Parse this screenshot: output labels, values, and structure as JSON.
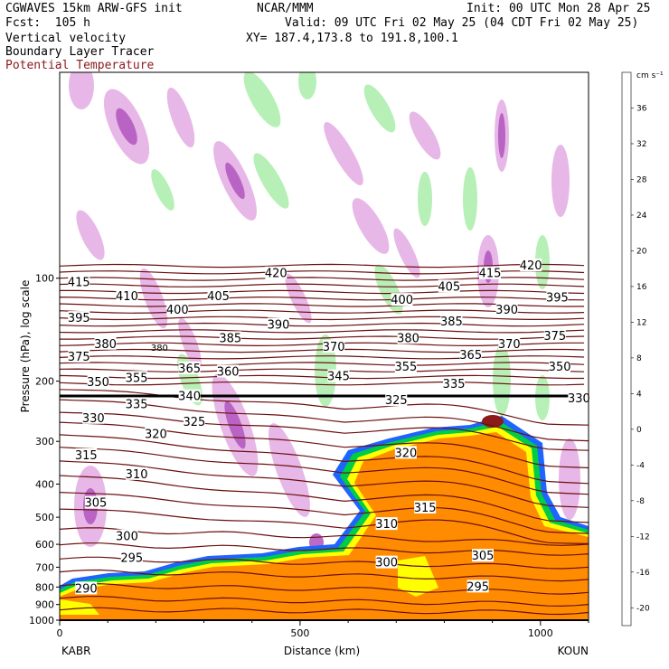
{
  "header": {
    "title_left": "CGWAVES 15km ARW-GFS init",
    "center_org": "NCAR/MMM",
    "init": "Init: 00 UTC Mon 28 Apr 25",
    "fcst": "Fcst:  105 h",
    "valid": "Valid: 09 UTC Fri 02 May 25 (04 CDT Fri 02 May 25)",
    "field1": "Vertical velocity",
    "field2": "Boundary Layer Tracer",
    "field3": "Potential Temperature",
    "xy": "XY= 187.4,173.8 to 191.8,100.1"
  },
  "colors": {
    "theta_line": "#6b0f0f",
    "tracer_fill": "#ff8c00",
    "tracer_edge_yellow": "#ffff00",
    "tracer_edge_green": "#00cc44",
    "tracer_edge_blue": "#1e64ff",
    "updraft_light": "#b4f0b4",
    "downdraft_light": "#e6b4e6",
    "downdraft_dark": "#8c3ca0"
  },
  "chart_data": {
    "type": "cross-section",
    "xlabel": "Distance (km)",
    "ylabel": "Pressure (hPa), log scale",
    "left_endpoint": "KABR",
    "right_endpoint": "KOUN",
    "x_ticks": [
      {
        "value": 0,
        "label": "0"
      },
      {
        "value": 500,
        "label": "500"
      },
      {
        "value": 1000,
        "label": "1000"
      }
    ],
    "xlim": [
      0,
      1100
    ],
    "y_ticks": [
      {
        "value": 100,
        "label": "100"
      },
      {
        "value": 200,
        "label": "200"
      },
      {
        "value": 300,
        "label": "300"
      },
      {
        "value": 400,
        "label": "400"
      },
      {
        "value": 500,
        "label": "500"
      },
      {
        "value": 600,
        "label": "600"
      },
      {
        "value": 700,
        "label": "700"
      },
      {
        "value": 800,
        "label": "800"
      },
      {
        "value": 900,
        "label": "900"
      },
      {
        "value": 1000,
        "label": "1000"
      }
    ],
    "ylim": [
      1000,
      25
    ],
    "colorbar": {
      "unit": "cm s⁻¹",
      "levels": [
        -22,
        -20,
        -18,
        -16,
        -14,
        -12,
        -10,
        -8,
        -6,
        -4,
        -2,
        0,
        2,
        4,
        6,
        8,
        10,
        12,
        14,
        16,
        18,
        20,
        22,
        24,
        26,
        28,
        30,
        32,
        34,
        36,
        38,
        40
      ],
      "labels": [
        "-20",
        "-16",
        "-12",
        "-8",
        "-4",
        "0",
        "4",
        "8",
        "12",
        "16",
        "20",
        "24",
        "28",
        "32",
        "36"
      ],
      "label_values": [
        -20,
        -16,
        -12,
        -8,
        -4,
        0,
        4,
        8,
        12,
        16,
        20,
        24,
        28,
        32,
        36
      ]
    },
    "theta_labels": [
      {
        "text": "415",
        "x": 40,
        "p": 103
      },
      {
        "text": "410",
        "x": 140,
        "p": 113
      },
      {
        "text": "400",
        "x": 245,
        "p": 124
      },
      {
        "text": "405",
        "x": 330,
        "p": 113
      },
      {
        "text": "420",
        "x": 450,
        "p": 97
      },
      {
        "text": "400",
        "x": 712,
        "p": 116
      },
      {
        "text": "405",
        "x": 810,
        "p": 106
      },
      {
        "text": "415",
        "x": 895,
        "p": 97
      },
      {
        "text": "420",
        "x": 980,
        "p": 92
      },
      {
        "text": "395",
        "x": 1035,
        "p": 114
      },
      {
        "text": "395",
        "x": 40,
        "p": 131
      },
      {
        "text": "390",
        "x": 455,
        "p": 137
      },
      {
        "text": "385",
        "x": 815,
        "p": 134
      },
      {
        "text": "390",
        "x": 930,
        "p": 124
      },
      {
        "text": "380",
        "x": 95,
        "p": 156
      },
      {
        "text": "385",
        "x": 355,
        "p": 150
      },
      {
        "text": "370",
        "x": 570,
        "p": 159
      },
      {
        "text": "380",
        "x": 725,
        "p": 150
      },
      {
        "text": "370",
        "x": 935,
        "p": 156
      },
      {
        "text": "375",
        "x": 1030,
        "p": 148
      },
      {
        "text": "375",
        "x": 40,
        "p": 170
      },
      {
        "text": "365",
        "x": 270,
        "p": 184
      },
      {
        "text": "360",
        "x": 350,
        "p": 188
      },
      {
        "text": "355",
        "x": 160,
        "p": 196
      },
      {
        "text": "345",
        "x": 580,
        "p": 194
      },
      {
        "text": "355",
        "x": 720,
        "p": 182
      },
      {
        "text": "365",
        "x": 855,
        "p": 168
      },
      {
        "text": "350",
        "x": 1040,
        "p": 182
      },
      {
        "text": "350",
        "x": 80,
        "p": 202
      },
      {
        "text": "340",
        "x": 270,
        "p": 222
      },
      {
        "text": "335",
        "x": 160,
        "p": 234
      },
      {
        "text": "335",
        "x": 820,
        "p": 204
      },
      {
        "text": "325",
        "x": 700,
        "p": 228
      },
      {
        "text": "330",
        "x": 1080,
        "p": 225
      },
      {
        "text": "330",
        "x": 70,
        "p": 257
      },
      {
        "text": "325",
        "x": 280,
        "p": 264
      },
      {
        "text": "320",
        "x": 200,
        "p": 286
      },
      {
        "text": "320",
        "x": 720,
        "p": 325
      },
      {
        "text": "315",
        "x": 55,
        "p": 330
      },
      {
        "text": "310",
        "x": 160,
        "p": 375
      },
      {
        "text": "305",
        "x": 75,
        "p": 455
      },
      {
        "text": "315",
        "x": 760,
        "p": 470
      },
      {
        "text": "310",
        "x": 680,
        "p": 525
      },
      {
        "text": "300",
        "x": 140,
        "p": 570
      },
      {
        "text": "305",
        "x": 880,
        "p": 650
      },
      {
        "text": "295",
        "x": 150,
        "p": 660
      },
      {
        "text": "300",
        "x": 680,
        "p": 680
      },
      {
        "text": "295",
        "x": 870,
        "p": 800
      },
      {
        "text": "290",
        "x": 55,
        "p": 810
      }
    ],
    "overlap_label": {
      "text": "380",
      "x": 185,
      "p": 159
    }
  }
}
